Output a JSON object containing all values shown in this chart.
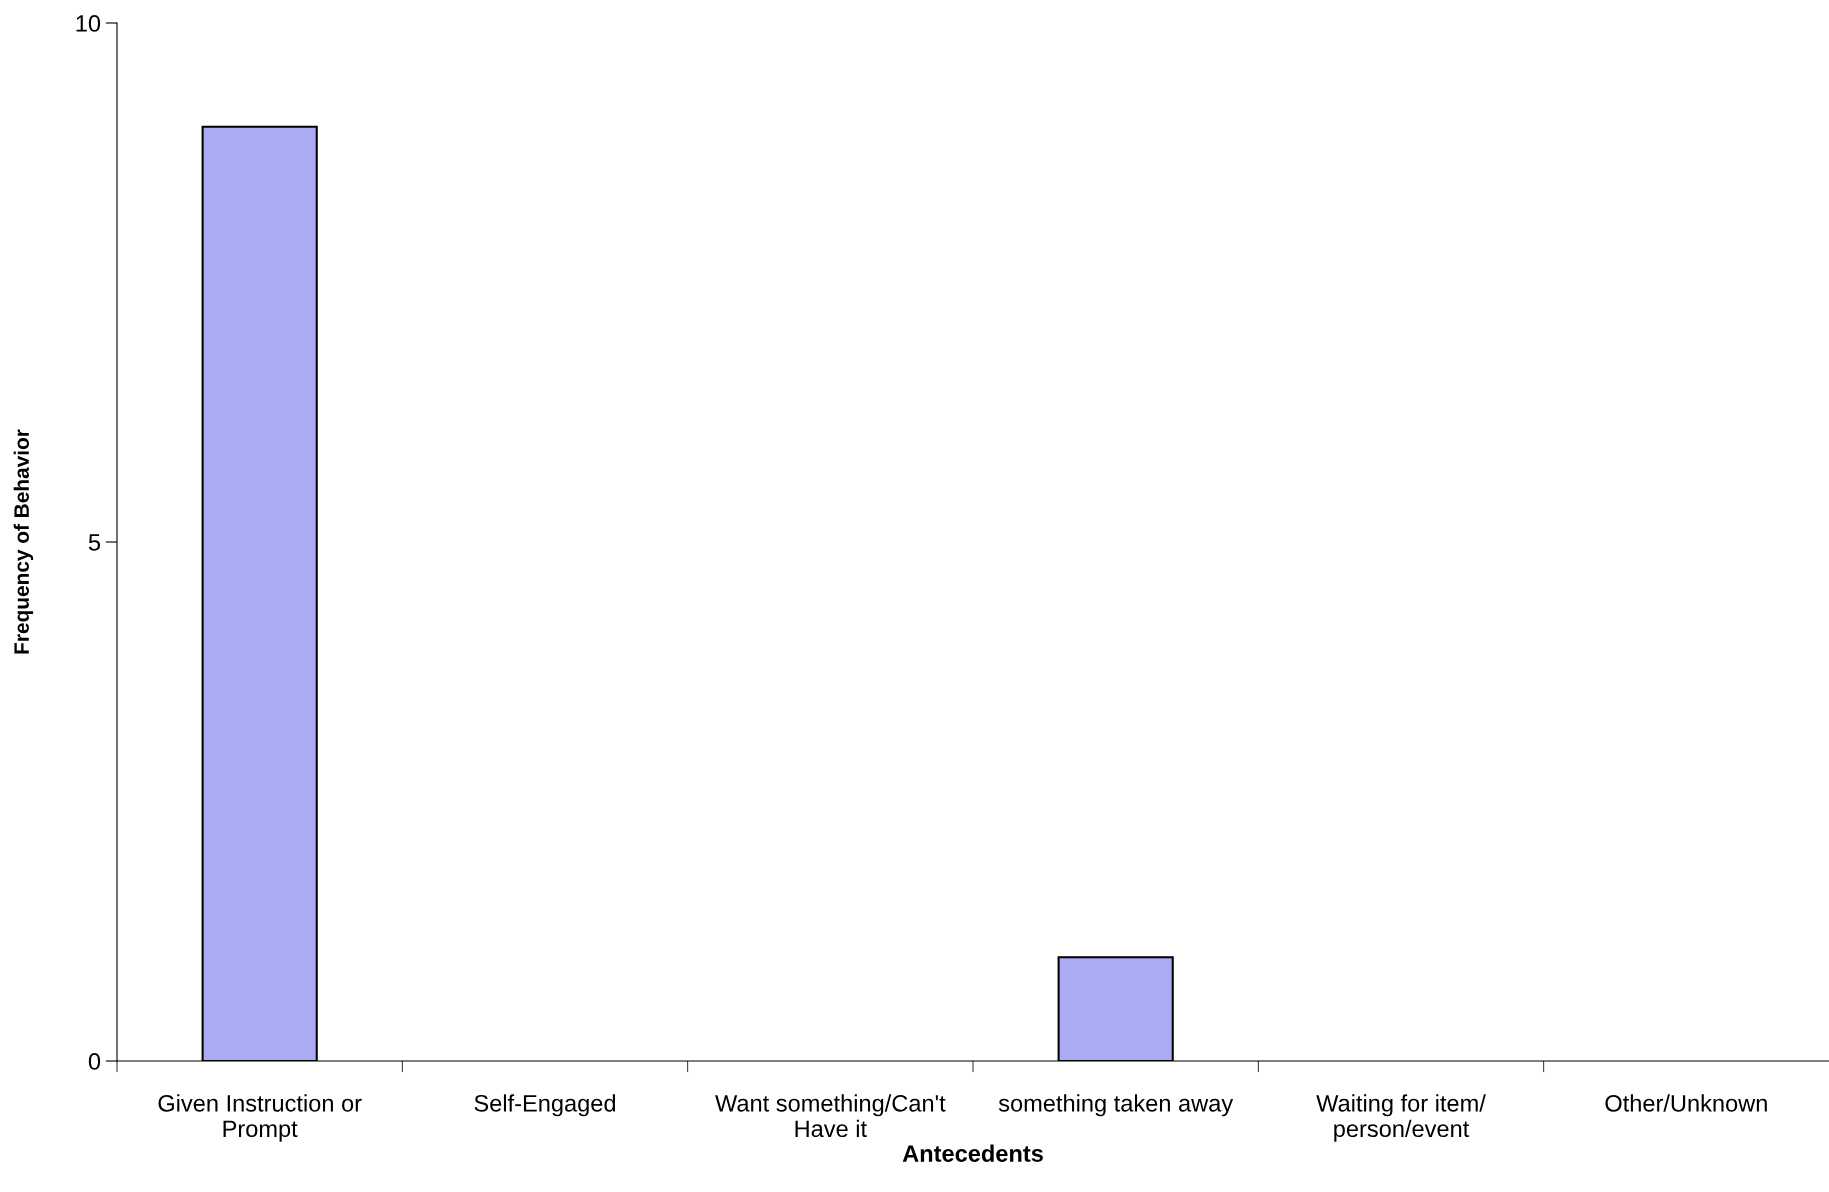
{
  "chart_data": {
    "type": "bar",
    "xlabel": "Antecedents",
    "ylabel": "Frequency of Behavior",
    "categories": [
      "Given Instruction or\nPrompt",
      "Self-Engaged",
      "Want something/Can't\nHave it",
      "something taken away",
      "Waiting for item/\nperson/event",
      "Other/Unknown"
    ],
    "values": [
      9,
      0,
      0,
      1,
      0,
      0
    ],
    "color": "#aaaaf5",
    "ylim": [
      0,
      10
    ],
    "yticks": [
      0,
      5,
      10
    ],
    "grid": false,
    "legend": false
  }
}
